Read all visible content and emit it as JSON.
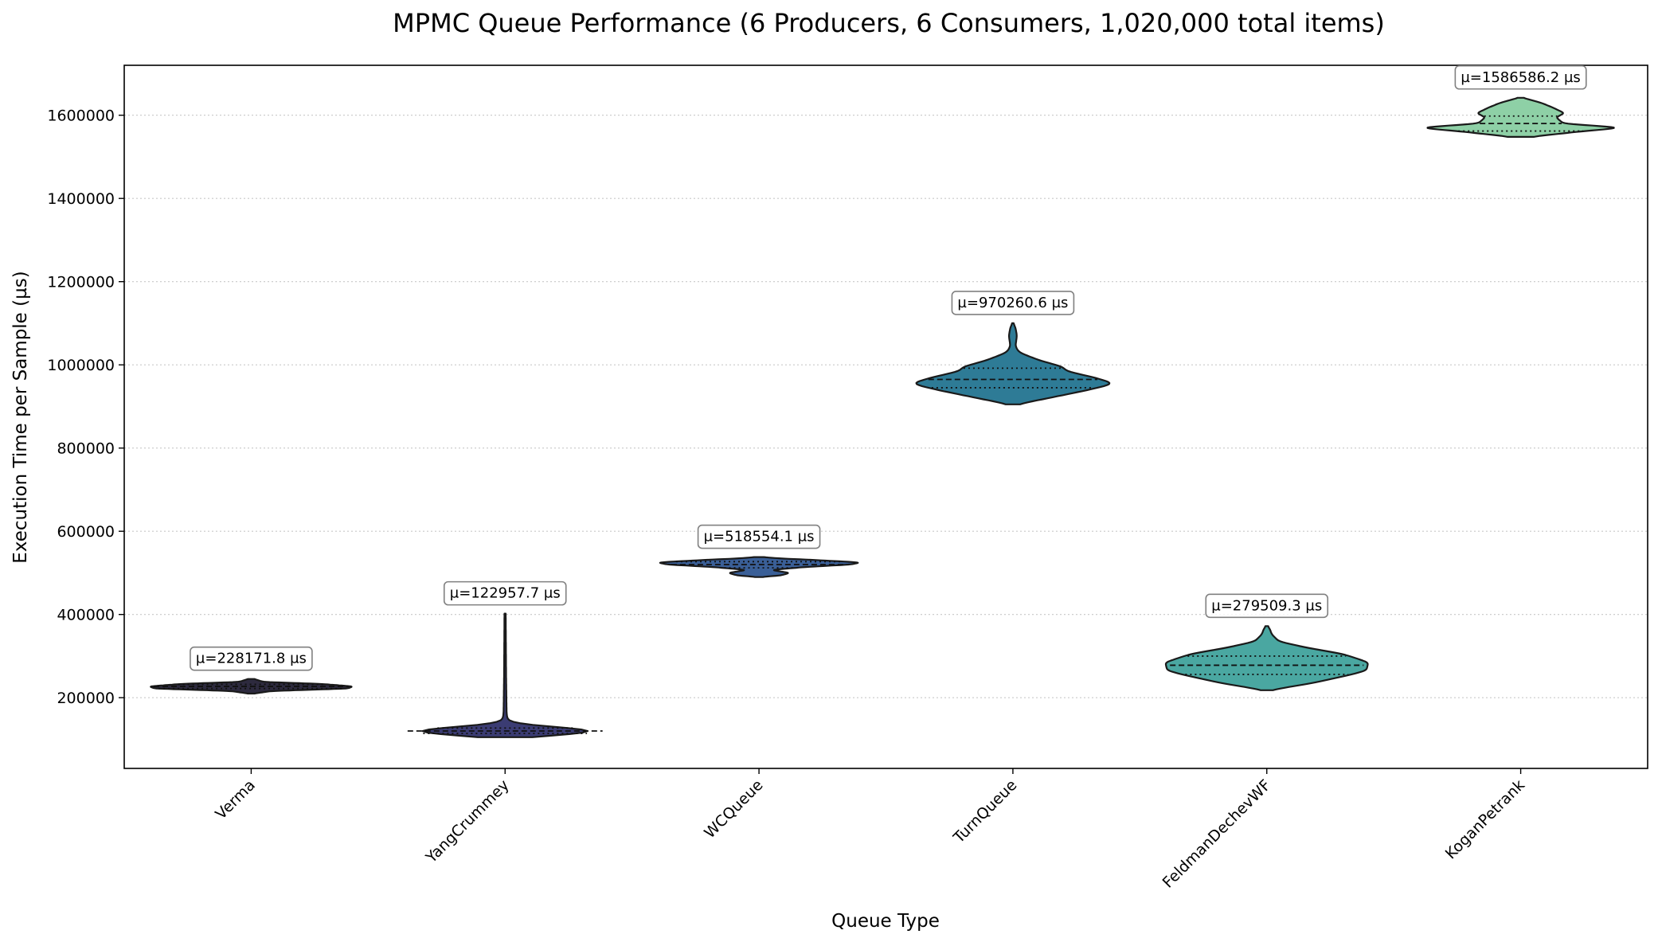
{
  "chart_data": {
    "type": "violin",
    "title": "MPMC Queue Performance (6 Producers, 6 Consumers, 1,020,000 total items)",
    "xlabel": "Queue Type",
    "ylabel": "Execution Time per Sample (µs)",
    "ylim": [
      30000,
      1720000
    ],
    "yticks": [
      "200000",
      "400000",
      "600000",
      "800000",
      "1000000",
      "1200000",
      "1400000",
      "1600000"
    ],
    "grid": "y-dotted",
    "categories": [
      "Verma",
      "YangCrummey",
      "WCQueue",
      "TurnQueue",
      "FeldmanDechevWF",
      "KoganPetrank"
    ],
    "series": [
      {
        "category": "Verma",
        "color": "#2d2a3e",
        "mean_label": "µ=228171.8 µs",
        "mean": 228171.8,
        "min": 210000,
        "max": 245000,
        "q1": 222000,
        "median": 227000,
        "q3": 232000,
        "shape": [
          [
            210000,
            0.03
          ],
          [
            216000,
            0.2
          ],
          [
            222000,
            0.95
          ],
          [
            227000,
            1.0
          ],
          [
            233000,
            0.7
          ],
          [
            238000,
            0.12
          ],
          [
            245000,
            0.03
          ]
        ]
      },
      {
        "category": "YangCrummey",
        "color": "#3b3c73",
        "mean_label": "µ=122957.7 µs",
        "mean": 122957.7,
        "min": 105000,
        "max": 402000,
        "q1": 114000,
        "median": 120000,
        "q3": 127000,
        "shape": [
          [
            105000,
            0.05
          ],
          [
            110000,
            0.6
          ],
          [
            115000,
            0.9
          ],
          [
            120000,
            1.0
          ],
          [
            128000,
            0.65
          ],
          [
            135000,
            0.12
          ],
          [
            142000,
            0.03
          ],
          [
            160000,
            0.015
          ],
          [
            250000,
            0.01
          ],
          [
            402000,
            0.006
          ]
        ]
      },
      {
        "category": "WCQueue",
        "color": "#3a5f97",
        "mean_label": "µ=518554.1 µs",
        "mean": 518554.1,
        "min": 490000,
        "max": 538000,
        "q1": 512000,
        "median": 520000,
        "q3": 527000,
        "shape": [
          [
            490000,
            0.02
          ],
          [
            494000,
            0.22
          ],
          [
            500000,
            0.3
          ],
          [
            507000,
            0.12
          ],
          [
            514000,
            0.45
          ],
          [
            520000,
            0.9
          ],
          [
            525000,
            1.0
          ],
          [
            531000,
            0.55
          ],
          [
            535000,
            0.18
          ],
          [
            538000,
            0.03
          ]
        ]
      },
      {
        "category": "TurnQueue",
        "color": "#2e7b96",
        "mean_label": "µ=970260.6 µs",
        "mean": 970260.6,
        "min": 905000,
        "max": 1100000,
        "q1": 945000,
        "median": 965000,
        "q3": 992000,
        "shape": [
          [
            905000,
            0.04
          ],
          [
            920000,
            0.35
          ],
          [
            940000,
            0.75
          ],
          [
            955000,
            1.0
          ],
          [
            970000,
            0.8
          ],
          [
            985000,
            0.52
          ],
          [
            995000,
            0.5
          ],
          [
            1010000,
            0.27
          ],
          [
            1030000,
            0.06
          ],
          [
            1045000,
            0.025
          ],
          [
            1070000,
            0.04
          ],
          [
            1090000,
            0.025
          ],
          [
            1100000,
            0.005
          ]
        ]
      },
      {
        "category": "FeldmanDechevWF",
        "color": "#4aa7a1",
        "mean_label": "µ=279509.3 µs",
        "mean": 279509.3,
        "min": 218000,
        "max": 372000,
        "q1": 256000,
        "median": 278000,
        "q3": 300000,
        "shape": [
          [
            218000,
            0.03
          ],
          [
            235000,
            0.45
          ],
          [
            255000,
            0.82
          ],
          [
            265000,
            0.98
          ],
          [
            285000,
            1.0
          ],
          [
            305000,
            0.75
          ],
          [
            320000,
            0.4
          ],
          [
            335000,
            0.12
          ],
          [
            352000,
            0.05
          ],
          [
            365000,
            0.03
          ],
          [
            372000,
            0.01
          ]
        ]
      },
      {
        "category": "KoganPetrank",
        "color": "#8ed0a6",
        "mean_label": "µ=1586586.2 µs",
        "mean": 1586586.2,
        "min": 1548000,
        "max": 1642000,
        "q1": 1562000,
        "median": 1580000,
        "q3": 1598000,
        "shape": [
          [
            1548000,
            0.1
          ],
          [
            1560000,
            0.55
          ],
          [
            1570000,
            1.0
          ],
          [
            1580000,
            0.42
          ],
          [
            1595000,
            0.35
          ],
          [
            1605000,
            0.43
          ],
          [
            1618000,
            0.32
          ],
          [
            1630000,
            0.2
          ],
          [
            1642000,
            0.02
          ]
        ]
      }
    ]
  }
}
